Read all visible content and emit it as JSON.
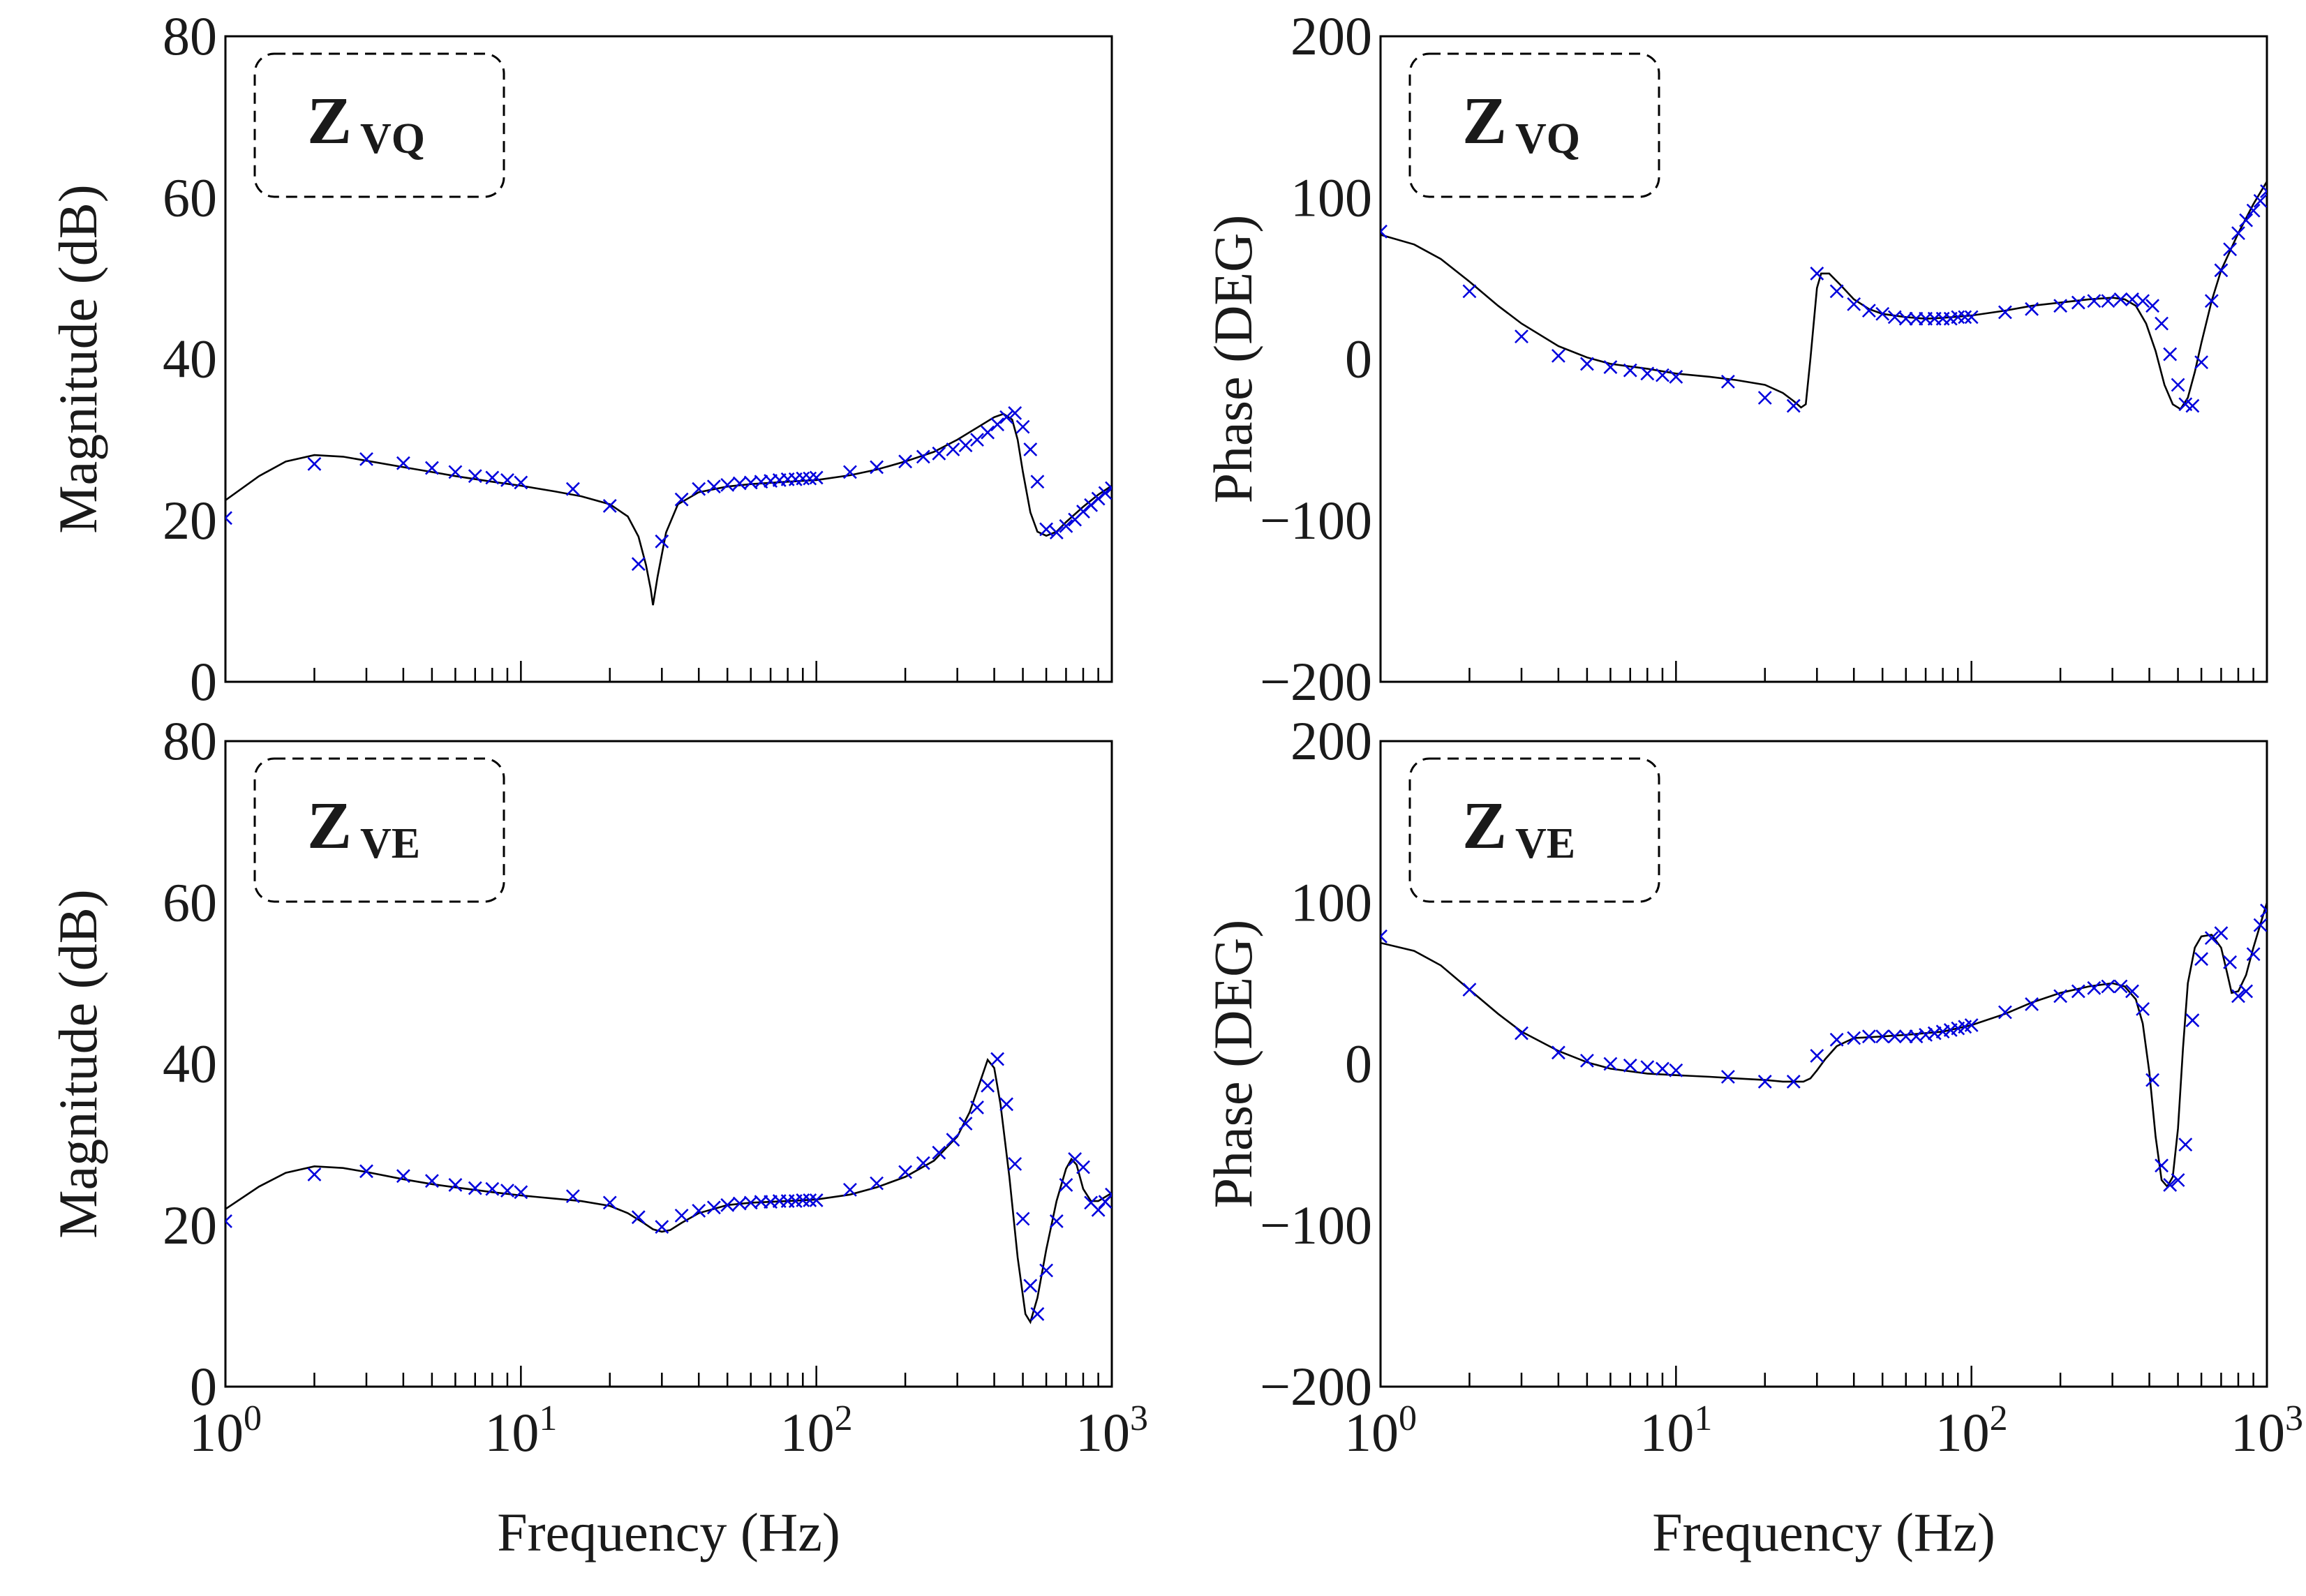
{
  "figure": {
    "x_axis_label": "Frequency (Hz)",
    "x_tick_labels": [
      {
        "base": "10",
        "exp": "0"
      },
      {
        "base": "10",
        "exp": "1"
      },
      {
        "base": "10",
        "exp": "2"
      },
      {
        "base": "10",
        "exp": "3"
      }
    ]
  },
  "chart_data": [
    {
      "type": "line",
      "panel": "top-left",
      "badge": {
        "main": "Z",
        "sub": "VQ"
      },
      "xlabel": "",
      "ylabel": "Magnitude (dB)",
      "xscale": "log",
      "xlim": [
        1,
        1000
      ],
      "ylim": [
        0,
        80
      ],
      "yticks": [
        0,
        20,
        40,
        60,
        80
      ],
      "grid": false,
      "series": [
        {
          "style": "line",
          "color": "#000000",
          "x": [
            1,
            1.3,
            1.6,
            2,
            2.5,
            3,
            4,
            5,
            6,
            8,
            10,
            13,
            16,
            20,
            23,
            25,
            26.5,
            27.5,
            28,
            29,
            31,
            34,
            40,
            50,
            60,
            80,
            100,
            130,
            160,
            200,
            250,
            300,
            350,
            400,
            430,
            460,
            480,
            500,
            530,
            560,
            600,
            650,
            700,
            800,
            900,
            1000
          ],
          "y": [
            22.5,
            25.5,
            27.3,
            28.1,
            27.9,
            27.4,
            26.6,
            26,
            25.5,
            24.8,
            24.3,
            23.6,
            23,
            22,
            20.5,
            18,
            14.5,
            11.5,
            9.5,
            13,
            18.5,
            22,
            23.5,
            24.2,
            24.5,
            24.8,
            25,
            25.6,
            26.3,
            27.3,
            28.5,
            30,
            31.5,
            32.8,
            33.2,
            32.5,
            30,
            26,
            21,
            18.6,
            18.1,
            18.6,
            19.8,
            21.7,
            23.2,
            24.3
          ]
        },
        {
          "style": "marker",
          "marker": "x",
          "color": "#0000dd",
          "x": [
            1,
            2,
            3,
            4,
            5,
            6,
            7,
            8,
            9,
            10,
            15,
            20,
            25,
            30,
            35,
            40,
            45,
            50,
            55,
            60,
            65,
            70,
            75,
            80,
            85,
            90,
            95,
            100,
            130,
            160,
            200,
            230,
            260,
            290,
            320,
            350,
            380,
            410,
            440,
            470,
            500,
            530,
            560,
            600,
            650,
            700,
            750,
            800,
            850,
            900,
            950,
            1000
          ],
          "y": [
            20.3,
            27,
            27.6,
            27.1,
            26.5,
            26,
            25.5,
            25.3,
            25,
            24.7,
            23.9,
            21.8,
            14.6,
            17.4,
            22.6,
            23.9,
            24.2,
            24.4,
            24.6,
            24.7,
            24.8,
            24.9,
            25,
            25.1,
            25.1,
            25.2,
            25.2,
            25.3,
            26,
            26.6,
            27.3,
            27.9,
            28.3,
            28.8,
            29.3,
            30,
            30.9,
            31.9,
            32.8,
            33.3,
            31.6,
            28.8,
            24.8,
            18.9,
            18.5,
            19.3,
            20.1,
            21.1,
            21.9,
            22.7,
            23.4,
            24
          ]
        }
      ]
    },
    {
      "type": "line",
      "panel": "top-right",
      "badge": {
        "main": "Z",
        "sub": "VQ"
      },
      "xlabel": "",
      "ylabel": "Phase (DEG)",
      "xscale": "log",
      "xlim": [
        1,
        1000
      ],
      "ylim": [
        -200,
        200
      ],
      "yticks": [
        -200,
        -100,
        0,
        100,
        200
      ],
      "grid": false,
      "series": [
        {
          "style": "line",
          "color": "#000000",
          "x": [
            1,
            1.3,
            1.6,
            2,
            2.5,
            3,
            4,
            5,
            6,
            8,
            10,
            13,
            16,
            20,
            23,
            25,
            26.5,
            27.5,
            28.5,
            30,
            31,
            33,
            36,
            40,
            45,
            50,
            60,
            70,
            80,
            100,
            130,
            160,
            200,
            250,
            300,
            330,
            360,
            390,
            420,
            450,
            480,
            510,
            540,
            570,
            600,
            650,
            700,
            800,
            900,
            1000
          ],
          "y": [
            77,
            71,
            62,
            48,
            33,
            22,
            8,
            1,
            -3,
            -6,
            -9,
            -11,
            -13,
            -16,
            -21,
            -26,
            -30,
            -28,
            0,
            44,
            53,
            53,
            46,
            37,
            31,
            28,
            26,
            25,
            25.5,
            27,
            30,
            33,
            35,
            37,
            38,
            37,
            33,
            22,
            5,
            -16,
            -28,
            -31,
            -24,
            -8,
            10,
            36,
            55,
            78,
            96,
            110
          ]
        },
        {
          "style": "marker",
          "marker": "x",
          "color": "#0000dd",
          "x": [
            1,
            2,
            3,
            4,
            5,
            6,
            7,
            8,
            9,
            10,
            15,
            20,
            25,
            30,
            35,
            40,
            45,
            50,
            55,
            60,
            65,
            70,
            75,
            80,
            85,
            90,
            95,
            100,
            130,
            160,
            200,
            230,
            260,
            290,
            320,
            350,
            380,
            410,
            440,
            470,
            500,
            530,
            560,
            600,
            650,
            700,
            750,
            800,
            850,
            900,
            950,
            1000
          ],
          "y": [
            79,
            42,
            14,
            2,
            -3,
            -5,
            -7,
            -9,
            -10,
            -11,
            -14,
            -24,
            -29,
            53,
            42,
            34,
            30,
            28,
            26,
            25,
            25,
            25,
            25,
            25,
            25,
            26,
            26,
            26,
            29,
            31,
            33,
            35,
            36,
            36,
            37,
            37,
            36,
            33,
            22,
            3,
            -16,
            -28,
            -29,
            -2,
            36,
            55,
            68,
            78,
            86,
            92,
            98,
            104
          ]
        }
      ]
    },
    {
      "type": "line",
      "panel": "bottom-left",
      "badge": {
        "main": "Z",
        "sub": "VE"
      },
      "xlabel": "Frequency (Hz)",
      "ylabel": "Magnitude (dB)",
      "xscale": "log",
      "xlim": [
        1,
        1000
      ],
      "ylim": [
        0,
        80
      ],
      "yticks": [
        0,
        20,
        40,
        60,
        80
      ],
      "grid": false,
      "series": [
        {
          "style": "line",
          "color": "#000000",
          "x": [
            1,
            1.3,
            1.6,
            2,
            2.5,
            3,
            4,
            5,
            6,
            8,
            10,
            13,
            16,
            20,
            23,
            26,
            28,
            30,
            32,
            35,
            40,
            50,
            60,
            80,
            100,
            130,
            160,
            200,
            250,
            300,
            330,
            360,
            380,
            400,
            420,
            450,
            480,
            510,
            530,
            560,
            600,
            650,
            700,
            730,
            760,
            800,
            850,
            900,
            1000
          ],
          "y": [
            22,
            24.8,
            26.5,
            27.3,
            27.1,
            26.6,
            25.7,
            25.1,
            24.7,
            24.1,
            23.7,
            23.3,
            23,
            22.4,
            21.5,
            20.3,
            19.5,
            19.2,
            19.4,
            20.3,
            21.5,
            22.5,
            22.8,
            23,
            23.2,
            23.8,
            24.7,
            26,
            28,
            31,
            34,
            38,
            40.5,
            39.5,
            35,
            26,
            16,
            9,
            8,
            11,
            17,
            23,
            27,
            28.2,
            27.5,
            24.5,
            23,
            23,
            24
          ]
        },
        {
          "style": "marker",
          "marker": "x",
          "color": "#0000dd",
          "x": [
            1,
            2,
            3,
            4,
            5,
            6,
            7,
            8,
            9,
            10,
            15,
            20,
            25,
            30,
            35,
            40,
            45,
            50,
            55,
            60,
            65,
            70,
            75,
            80,
            85,
            90,
            95,
            100,
            130,
            160,
            200,
            230,
            260,
            290,
            320,
            350,
            380,
            410,
            440,
            470,
            500,
            530,
            560,
            600,
            650,
            700,
            750,
            800,
            850,
            900,
            950,
            1000
          ],
          "y": [
            20.5,
            26.3,
            26.7,
            26.1,
            25.5,
            25,
            24.6,
            24.5,
            24.3,
            24.1,
            23.6,
            22.8,
            21,
            19.8,
            21.2,
            21.8,
            22.2,
            22.5,
            22.7,
            22.8,
            22.9,
            22.9,
            23,
            23,
            23,
            23.1,
            23.1,
            23.1,
            24.4,
            25.2,
            26.6,
            27.7,
            29,
            30.6,
            32.6,
            34.6,
            37.3,
            40.6,
            35,
            27.6,
            20.8,
            12.5,
            9,
            14.4,
            20.5,
            25,
            28.2,
            27.2,
            22.8,
            21.9,
            22.9,
            23.8
          ]
        }
      ]
    },
    {
      "type": "line",
      "panel": "bottom-right",
      "badge": {
        "main": "Z",
        "sub": "VE"
      },
      "xlabel": "Frequency (Hz)",
      "ylabel": "Phase (DEG)",
      "xscale": "log",
      "xlim": [
        1,
        1000
      ],
      "ylim": [
        -200,
        200
      ],
      "yticks": [
        -200,
        -100,
        0,
        100,
        200
      ],
      "grid": false,
      "series": [
        {
          "style": "line",
          "color": "#000000",
          "x": [
            1,
            1.3,
            1.6,
            2,
            2.5,
            3,
            4,
            5,
            6,
            8,
            10,
            13,
            16,
            20,
            23,
            25,
            27,
            28.5,
            30,
            32,
            35,
            40,
            50,
            60,
            80,
            100,
            130,
            160,
            200,
            250,
            300,
            330,
            360,
            380,
            400,
            420,
            440,
            460,
            480,
            500,
            520,
            540,
            570,
            600,
            650,
            700,
            730,
            760,
            800,
            850,
            900,
            1000
          ],
          "y": [
            75,
            70,
            61,
            46,
            31,
            20,
            8,
            1,
            -3,
            -6,
            -7,
            -8,
            -9,
            -10,
            -11,
            -11,
            -11,
            -9,
            -4,
            3,
            11,
            16,
            17,
            18,
            20,
            24,
            31,
            38,
            44,
            48,
            50,
            48,
            40,
            25,
            -5,
            -45,
            -72,
            -76,
            -70,
            -40,
            10,
            50,
            72,
            79,
            80,
            72,
            58,
            44,
            45,
            55,
            72,
            100
          ]
        },
        {
          "style": "marker",
          "marker": "x",
          "color": "#0000dd",
          "x": [
            1,
            2,
            3,
            4,
            5,
            6,
            7,
            8,
            9,
            10,
            15,
            20,
            25,
            30,
            35,
            40,
            45,
            50,
            55,
            60,
            65,
            70,
            75,
            80,
            85,
            90,
            95,
            100,
            130,
            160,
            200,
            230,
            260,
            290,
            320,
            350,
            380,
            410,
            440,
            470,
            500,
            530,
            560,
            600,
            650,
            700,
            750,
            800,
            850,
            900,
            950,
            1000
          ],
          "y": [
            79,
            46,
            19,
            7,
            2,
            0,
            -1,
            -2,
            -3,
            -4,
            -8,
            -11,
            -11,
            5,
            15,
            16,
            17,
            17,
            17,
            17,
            17,
            18,
            19,
            20,
            21,
            22,
            23,
            24,
            32,
            37,
            42,
            45,
            47,
            48,
            48,
            45,
            34,
            -10,
            -63,
            -75,
            -72,
            -50,
            27,
            65,
            78,
            81,
            63,
            42,
            45,
            68,
            86,
            95
          ]
        }
      ]
    }
  ]
}
